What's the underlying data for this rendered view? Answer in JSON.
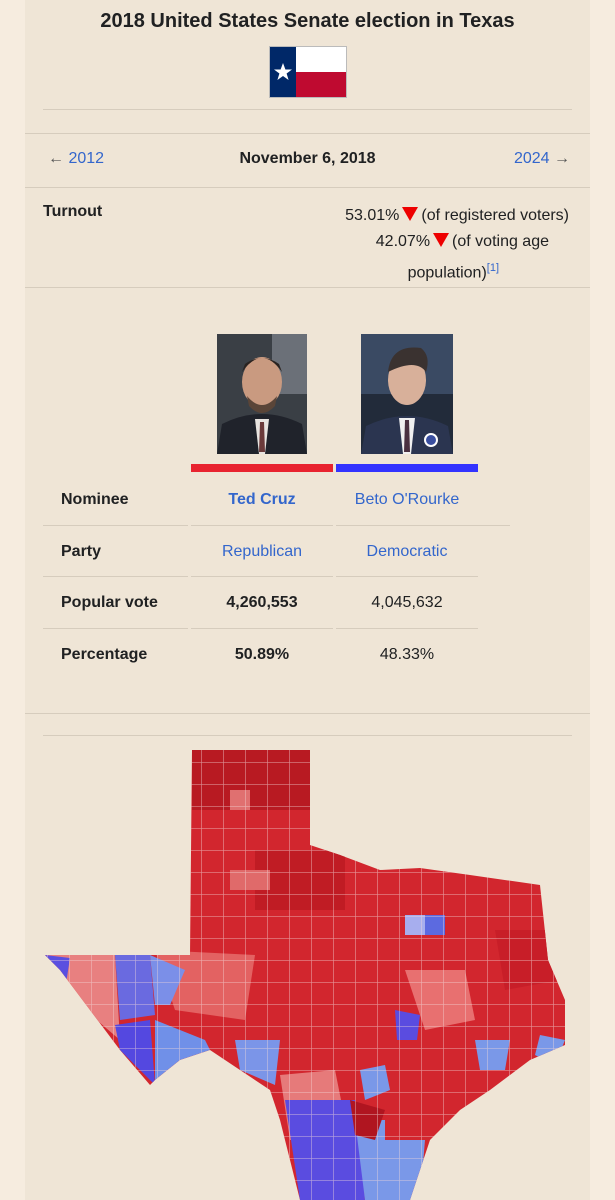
{
  "header": {
    "title": "2018 United States Senate election in Texas"
  },
  "nav": {
    "prev_arrow": "←",
    "prev": "2012",
    "date": "November 6, 2018",
    "next": "2024",
    "next_arrow": "→"
  },
  "turnout": {
    "label": "Turnout",
    "line1_value": "53.01%",
    "line1_note": "(of registered voters)",
    "line2_value": "42.07%",
    "line2_note": "(of voting age",
    "line3_note": "population)",
    "ref": "[1]"
  },
  "table": {
    "rows": [
      [
        "Nominee",
        "Ted Cruz",
        "Beto O'Rourke"
      ],
      [
        "Party",
        "Republican",
        "Democratic"
      ],
      [
        "Popular vote",
        "4,260,553",
        "4,045,632"
      ],
      [
        "Percentage",
        "50.89%",
        "48.33%"
      ]
    ]
  }
}
